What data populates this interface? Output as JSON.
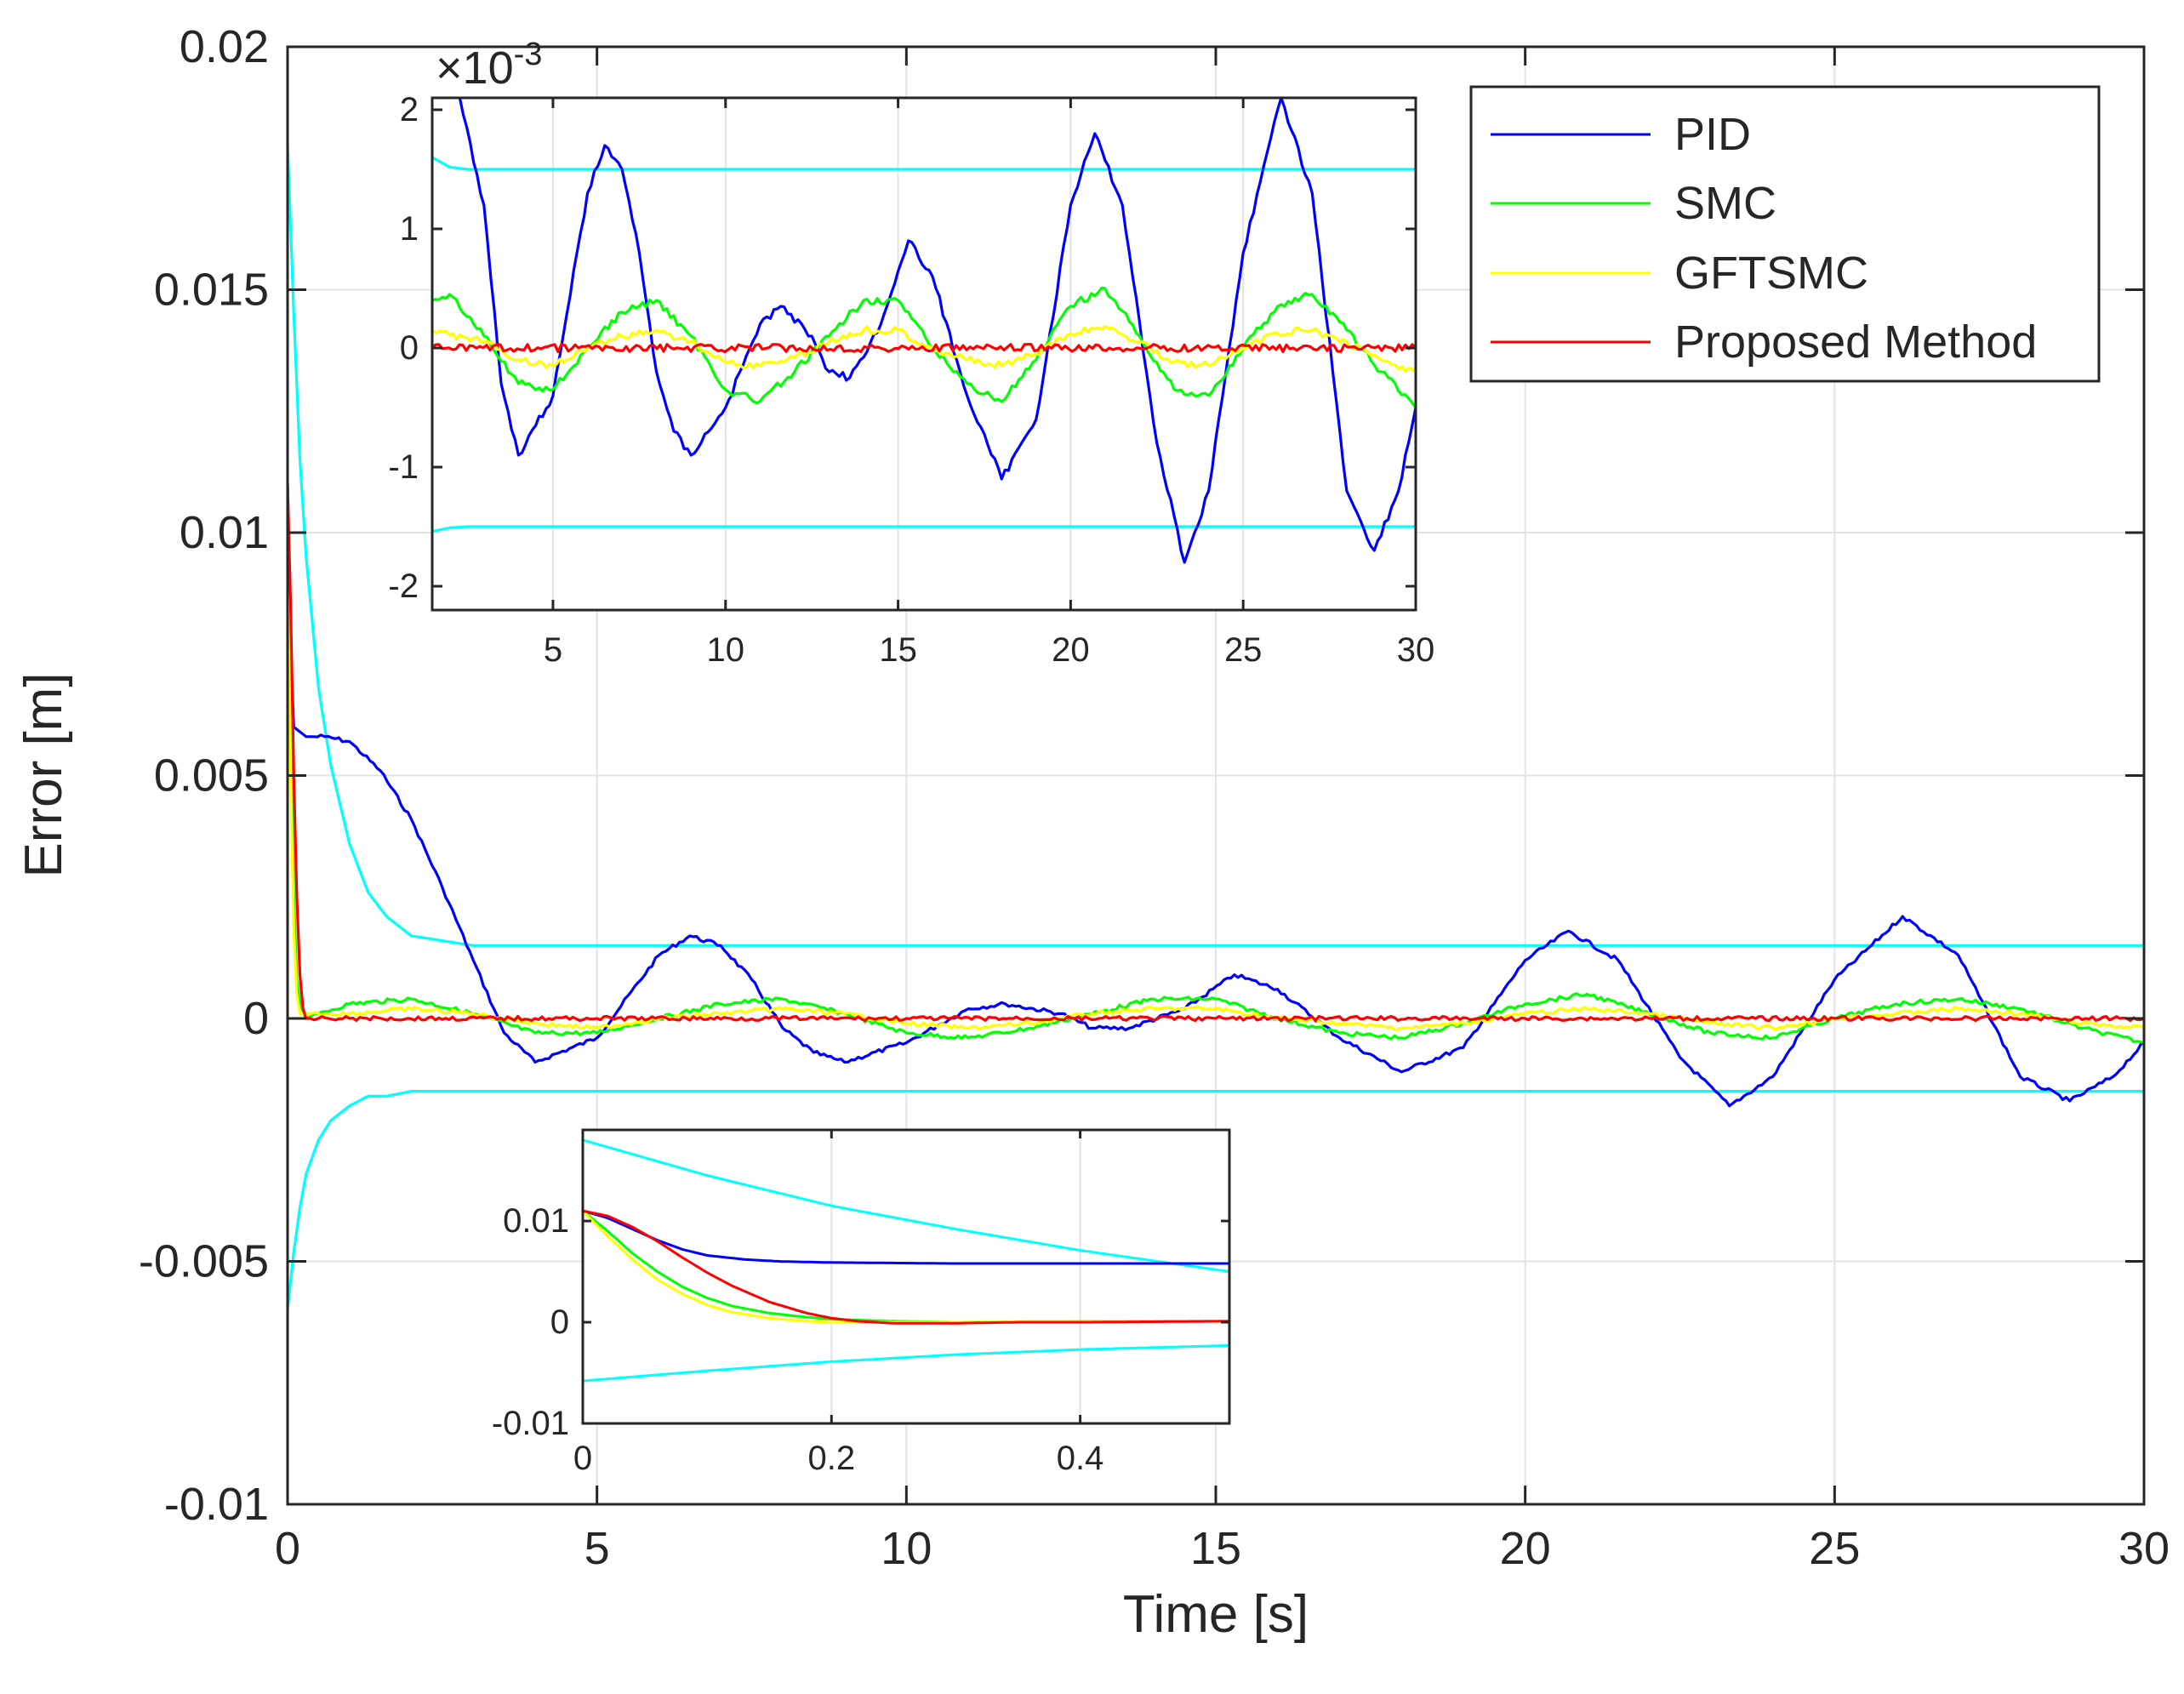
{
  "chart_data": [
    {
      "name": "main",
      "type": "line",
      "title": "",
      "xlabel": "Time [s]",
      "ylabel": "Error [m]",
      "xlim": [
        0,
        30
      ],
      "ylim": [
        -0.01,
        0.02
      ],
      "xticks": [
        0,
        5,
        10,
        15,
        20,
        25,
        30
      ],
      "xtick_labels": [
        "0",
        "5",
        "10",
        "15",
        "20",
        "25",
        "30"
      ],
      "yticks": [
        -0.01,
        -0.005,
        0,
        0.005,
        0.01,
        0.015,
        0.02
      ],
      "ytick_labels": [
        "-0.01",
        "-0.005",
        "0",
        "0.005",
        "0.01",
        "0.015",
        "0.02"
      ],
      "grid": true,
      "legend_position": "top-right",
      "series": [
        {
          "name": "PID",
          "color": "#0000FF",
          "x": [
            0,
            0.05,
            0.1,
            0.3,
            0.6,
            1.0,
            1.5,
            2.0,
            2.5,
            3.0,
            3.5,
            4.0,
            5.0,
            6.0,
            6.5,
            7.0,
            7.5,
            8.0,
            8.5,
            9.0,
            10.0,
            11.0,
            11.6,
            12.5,
            13.0,
            13.6,
            14.5,
            15.3,
            16.0,
            17.0,
            18.0,
            19.0,
            20.0,
            20.7,
            21.5,
            22.5,
            23.3,
            24.0,
            25.0,
            26.1,
            27.0,
            28.0,
            28.8,
            29.5,
            30.0
          ],
          "y": [
            0.011,
            0.0075,
            0.006,
            0.0058,
            0.0058,
            0.0057,
            0.0051,
            0.0041,
            0.0027,
            0.0012,
            -0.0003,
            -0.0009,
            -0.0004,
            0.0013,
            0.0017,
            0.0015,
            0.0008,
            -0.0002,
            -0.0007,
            -0.0009,
            -0.0005,
            0.0002,
            0.0003,
            0.0001,
            -0.0002,
            -0.0002,
            0.0002,
            0.0009,
            0.0006,
            -0.0004,
            -0.0011,
            -0.0006,
            0.0012,
            0.0018,
            0.0012,
            -0.0008,
            -0.0018,
            -0.0012,
            0.0008,
            0.0021,
            0.0013,
            -0.0012,
            -0.0017,
            -0.0012,
            -0.0005
          ]
        },
        {
          "name": "SMC",
          "color": "#00FF00",
          "x": [
            0,
            0.05,
            0.1,
            0.15,
            0.2,
            0.3,
            0.5,
            1.0,
            2.0,
            3.0,
            4.0,
            5.0,
            6.0,
            7.0,
            8.0,
            9.0,
            10.0,
            11.0,
            12.0,
            13.0,
            14.0,
            15.0,
            16.0,
            17.0,
            18.0,
            19.0,
            20.0,
            21.0,
            22.0,
            23.0,
            24.0,
            25.0,
            26.0,
            27.0,
            28.0,
            29.0,
            30.0
          ],
          "y": [
            0.011,
            0.006,
            0.0025,
            0.0008,
            0.0003,
            0.0,
            0.0001,
            0.0003,
            0.0004,
            0.0001,
            -0.0003,
            -0.0003,
            0.0,
            0.0003,
            0.0004,
            0.0001,
            -0.0003,
            -0.0004,
            -0.0002,
            0.0001,
            0.0004,
            0.0004,
            0.0,
            -0.0003,
            -0.0004,
            -0.0001,
            0.0003,
            0.0005,
            0.0001,
            -0.0003,
            -0.0004,
            0.0,
            0.0003,
            0.0004,
            0.0002,
            -0.0002,
            -0.0005
          ]
        },
        {
          "name": "GFTSMC",
          "color": "#FFFF00",
          "x": [
            0,
            0.05,
            0.1,
            0.15,
            0.2,
            0.5,
            1.0,
            2.0,
            3.0,
            4.0,
            5.0,
            6.0,
            7.0,
            8.0,
            9.0,
            10.0,
            11.0,
            12.0,
            13.0,
            14.0,
            15.0,
            16.0,
            17.0,
            18.0,
            19.0,
            20.0,
            21.0,
            22.0,
            23.0,
            24.0,
            25.0,
            26.0,
            27.0,
            28.0,
            29.0,
            30.0
          ],
          "y": [
            0.011,
            0.005,
            0.0018,
            0.0005,
            0.0001,
            0.0001,
            0.0001,
            0.0002,
            0.0001,
            -0.0001,
            -0.0002,
            0.0,
            0.0001,
            0.0002,
            0.0001,
            -0.0001,
            -0.0002,
            -0.0001,
            0.0001,
            0.0002,
            0.0002,
            0.0,
            -0.0001,
            -0.0002,
            -0.0001,
            0.0001,
            0.0002,
            0.0001,
            -0.0001,
            -0.0002,
            0.0,
            0.0001,
            0.0002,
            0.0001,
            -0.0001,
            -0.0002
          ]
        },
        {
          "name": "Proposed Method",
          "color": "#FF0000",
          "x": [
            0,
            0.05,
            0.1,
            0.15,
            0.2,
            0.25,
            0.3,
            0.5,
            1.0,
            5.0,
            10.0,
            15.0,
            20.0,
            25.0,
            30.0
          ],
          "y": [
            0.011,
            0.0085,
            0.005,
            0.0025,
            0.0009,
            0.0002,
            0.0,
            0.0,
            0.0,
            0.0,
            0.0,
            0.0,
            0.0,
            0.0,
            0.0
          ]
        },
        {
          "name": "Upper bound",
          "color": "#00FFFF",
          "x": [
            0,
            0.1,
            0.2,
            0.3,
            0.5,
            0.7,
            1.0,
            1.3,
            1.6,
            2.0,
            2.5,
            3.0,
            4.0,
            5.0,
            10.0,
            20.0,
            30.0
          ],
          "y": [
            0.018,
            0.0145,
            0.0115,
            0.0095,
            0.0068,
            0.0052,
            0.0036,
            0.0026,
            0.0021,
            0.0017,
            0.0016,
            0.0015,
            0.0015,
            0.0015,
            0.0015,
            0.0015,
            0.0015
          ]
        },
        {
          "name": "Lower bound",
          "color": "#00FFFF",
          "x": [
            0,
            0.1,
            0.2,
            0.3,
            0.5,
            0.7,
            1.0,
            1.3,
            1.6,
            2.0,
            2.5,
            3.0,
            4.0,
            5.0,
            10.0,
            20.0,
            30.0
          ],
          "y": [
            -0.006,
            -0.0048,
            -0.0039,
            -0.0032,
            -0.0025,
            -0.0021,
            -0.0018,
            -0.0016,
            -0.0016,
            -0.0015,
            -0.0015,
            -0.0015,
            -0.0015,
            -0.0015,
            -0.0015,
            -0.0015,
            -0.0015
          ]
        }
      ]
    },
    {
      "name": "inset-top",
      "type": "line",
      "xlim": [
        1.5,
        30
      ],
      "ylim": [
        -2.2,
        2.1
      ],
      "xticks": [
        5,
        10,
        15,
        20,
        25,
        30
      ],
      "xtick_labels": [
        "5",
        "10",
        "15",
        "20",
        "25",
        "30"
      ],
      "yticks": [
        -2,
        -1,
        0,
        1,
        2
      ],
      "ytick_labels": [
        "-2",
        "-1",
        "0",
        "1",
        "2"
      ],
      "y_multiplier_prefix": "×10",
      "y_multiplier_exponent": "-3",
      "series": [
        {
          "name": "PID",
          "color": "#0000FF",
          "x": [
            2.3,
            3.0,
            3.5,
            4.0,
            5.0,
            6.0,
            6.5,
            7.0,
            7.5,
            8.0,
            8.5,
            9.0,
            10.0,
            11.0,
            11.6,
            12.5,
            13.0,
            13.6,
            14.5,
            15.3,
            16.0,
            17.0,
            18.0,
            19.0,
            20.0,
            20.7,
            21.5,
            22.5,
            23.3,
            24.0,
            25.0,
            26.1,
            27.0,
            28.0,
            28.8,
            29.5,
            30.0
          ],
          "y": [
            2.1,
            1.2,
            -0.3,
            -0.9,
            -0.4,
            1.3,
            1.7,
            1.5,
            0.8,
            -0.2,
            -0.7,
            -0.9,
            -0.5,
            0.2,
            0.35,
            0.1,
            -0.2,
            -0.25,
            0.2,
            0.9,
            0.6,
            -0.4,
            -1.1,
            -0.6,
            1.2,
            1.8,
            1.2,
            -0.8,
            -1.8,
            -1.2,
            0.8,
            2.1,
            1.3,
            -1.2,
            -1.7,
            -1.2,
            -0.5
          ]
        },
        {
          "name": "SMC",
          "color": "#00FF00",
          "x": [
            1.5,
            2.0,
            3.0,
            4.0,
            5.0,
            6.0,
            7.0,
            8.0,
            9.0,
            10.0,
            11.0,
            12.0,
            13.0,
            14.0,
            15.0,
            16.0,
            17.0,
            18.0,
            19.0,
            20.0,
            21.0,
            22.0,
            23.0,
            24.0,
            25.0,
            26.0,
            27.0,
            28.0,
            29.0,
            30.0
          ],
          "y": [
            0.4,
            0.45,
            0.1,
            -0.3,
            -0.35,
            0.0,
            0.3,
            0.4,
            0.1,
            -0.35,
            -0.45,
            -0.2,
            0.1,
            0.4,
            0.4,
            0.0,
            -0.3,
            -0.45,
            -0.1,
            0.35,
            0.5,
            0.1,
            -0.35,
            -0.4,
            0.0,
            0.35,
            0.45,
            0.15,
            -0.2,
            -0.5
          ]
        },
        {
          "name": "GFTSMC",
          "color": "#FFFF00",
          "x": [
            1.5,
            3.0,
            4.0,
            5.0,
            6.0,
            7.0,
            8.0,
            9.0,
            10.0,
            11.0,
            12.0,
            13.0,
            14.0,
            15.0,
            16.0,
            17.0,
            18.0,
            19.0,
            20.0,
            21.0,
            22.0,
            23.0,
            24.0,
            25.0,
            26.0,
            27.0,
            28.0,
            29.0,
            30.0
          ],
          "y": [
            0.15,
            0.05,
            -0.1,
            -0.15,
            0.0,
            0.1,
            0.15,
            0.05,
            -0.12,
            -0.15,
            -0.08,
            0.05,
            0.15,
            0.15,
            0.0,
            -0.1,
            -0.15,
            -0.05,
            0.12,
            0.18,
            0.05,
            -0.12,
            -0.15,
            0.0,
            0.12,
            0.15,
            0.05,
            -0.1,
            -0.2
          ]
        },
        {
          "name": "Proposed Method",
          "color": "#FF0000",
          "x": [
            1.5,
            30.0
          ],
          "y": [
            0.0,
            0.0
          ]
        },
        {
          "name": "Upper bound",
          "color": "#00FFFF",
          "x": [
            1.5,
            2.0,
            2.5,
            30.0
          ],
          "y": [
            1.6,
            1.52,
            1.5,
            1.5
          ]
        },
        {
          "name": "Lower bound",
          "color": "#00FFFF",
          "x": [
            1.5,
            2.0,
            2.5,
            30.0
          ],
          "y": [
            -1.54,
            -1.51,
            -1.5,
            -1.5
          ]
        }
      ]
    },
    {
      "name": "inset-bottom",
      "type": "line",
      "xlim": [
        0,
        0.52
      ],
      "ylim": [
        -0.01,
        0.019
      ],
      "xticks": [
        0,
        0.2,
        0.4
      ],
      "xtick_labels": [
        "0",
        "0.2",
        "0.4"
      ],
      "yticks": [
        -0.01,
        0,
        0.01
      ],
      "ytick_labels": [
        "-0.01",
        "0",
        "0.01"
      ],
      "series": [
        {
          "name": "PID",
          "color": "#0000FF",
          "x": [
            0,
            0.02,
            0.04,
            0.06,
            0.08,
            0.1,
            0.13,
            0.16,
            0.2,
            0.3,
            0.4,
            0.52
          ],
          "y": [
            0.011,
            0.0103,
            0.0092,
            0.0081,
            0.0072,
            0.0066,
            0.0062,
            0.006,
            0.0059,
            0.0058,
            0.0058,
            0.0058
          ]
        },
        {
          "name": "SMC",
          "color": "#00FF00",
          "x": [
            0,
            0.02,
            0.04,
            0.06,
            0.08,
            0.1,
            0.12,
            0.15,
            0.18,
            0.2,
            0.25,
            0.3,
            0.4,
            0.52
          ],
          "y": [
            0.011,
            0.009,
            0.0068,
            0.005,
            0.0035,
            0.0024,
            0.0016,
            0.0009,
            0.0005,
            0.0003,
            0.0001,
            0.0,
            0.0001,
            0.0001
          ]
        },
        {
          "name": "GFTSMC",
          "color": "#FFFF00",
          "x": [
            0,
            0.02,
            0.04,
            0.06,
            0.08,
            0.1,
            0.12,
            0.15,
            0.18,
            0.2,
            0.25,
            0.3,
            0.4,
            0.52
          ],
          "y": [
            0.011,
            0.0085,
            0.0062,
            0.0042,
            0.0028,
            0.0017,
            0.001,
            0.0004,
            0.0001,
            0.0,
            0.0,
            0.0,
            0.0001,
            0.0001
          ]
        },
        {
          "name": "Proposed Method",
          "color": "#FF0000",
          "x": [
            0,
            0.02,
            0.04,
            0.06,
            0.08,
            0.1,
            0.12,
            0.15,
            0.18,
            0.2,
            0.22,
            0.25,
            0.3,
            0.35,
            0.4,
            0.52
          ],
          "y": [
            0.011,
            0.0105,
            0.0094,
            0.008,
            0.0064,
            0.0049,
            0.0036,
            0.002,
            0.0009,
            0.0004,
            0.0001,
            -0.0001,
            -0.0001,
            0.0,
            0.0,
            0.0001
          ]
        },
        {
          "name": "Upper bound",
          "color": "#00FFFF",
          "x": [
            0,
            0.1,
            0.2,
            0.3,
            0.4,
            0.52
          ],
          "y": [
            0.018,
            0.0145,
            0.0115,
            0.0092,
            0.0071,
            0.005
          ]
        },
        {
          "name": "Lower bound",
          "color": "#00FFFF",
          "x": [
            0,
            0.1,
            0.2,
            0.3,
            0.4,
            0.52
          ],
          "y": [
            -0.0058,
            -0.0048,
            -0.0039,
            -0.0032,
            -0.0027,
            -0.0023
          ]
        }
      ]
    }
  ],
  "legend": {
    "entries": [
      {
        "label": "PID",
        "color": "#0000FF"
      },
      {
        "label": "SMC",
        "color": "#00FF00"
      },
      {
        "label": "GFTSMC",
        "color": "#FFFF00"
      },
      {
        "label": "Proposed Method",
        "color": "#FF0000"
      }
    ]
  }
}
